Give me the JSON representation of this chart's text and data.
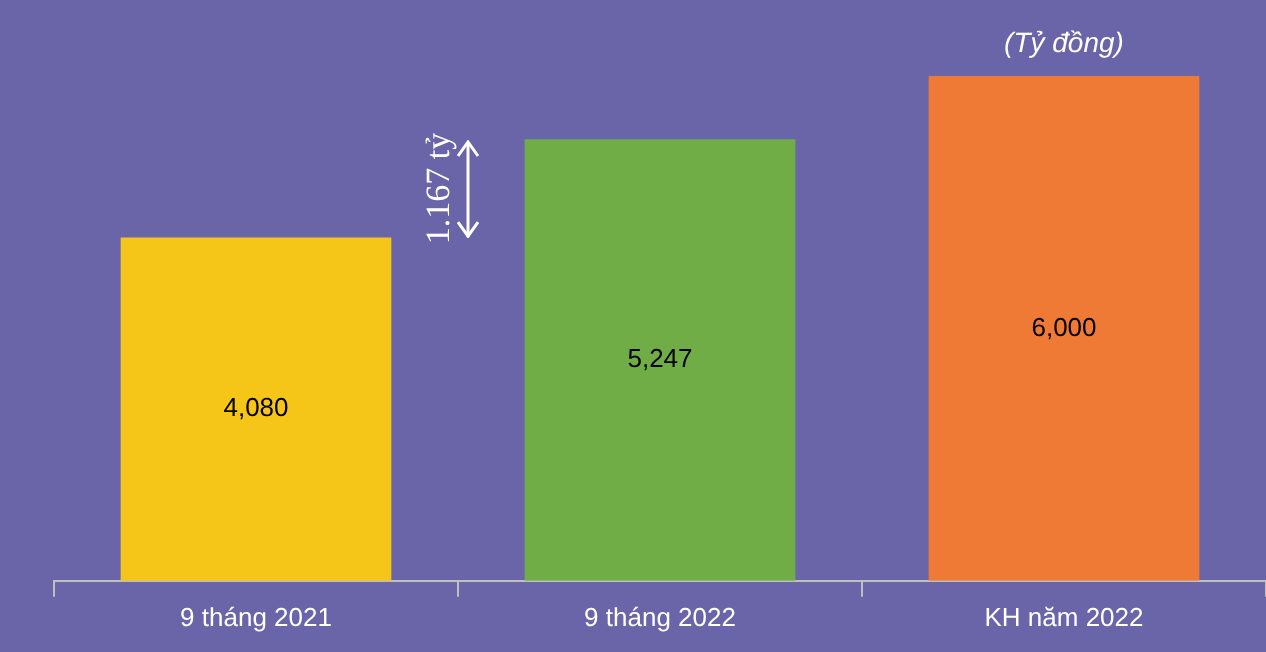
{
  "chart_data": {
    "type": "bar",
    "categories": [
      "9 tháng 2021",
      "9 tháng 2022",
      "KH năm 2022"
    ],
    "values": [
      4080,
      5247,
      6000
    ],
    "colors": [
      "#f5c518",
      "#70ad47",
      "#ee7a35"
    ],
    "tick_labels": "x",
    "value_labels": [
      "4,080",
      "5,247",
      "6,000"
    ],
    "grid": false,
    "legend": false,
    "annotations": [
      "(Tỷ đồng)",
      "1.167 tỷ"
    ]
  }
}
